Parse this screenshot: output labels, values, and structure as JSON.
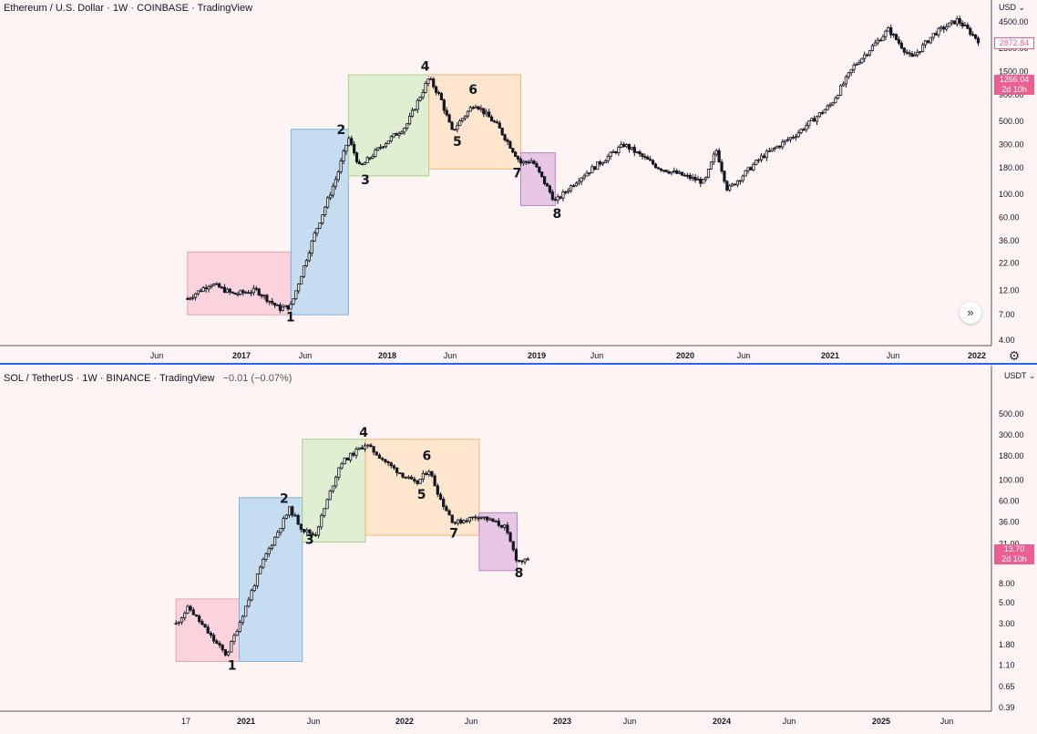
{
  "panes": [
    {
      "id": "eth",
      "header": "Ethereum / U.S. Dollar · 1W · COINBASE · TradingView",
      "change": "",
      "currency": "USD",
      "last_price": "2872.84",
      "marker_price": "1266.04",
      "marker_countdown": "2d 10h"
    },
    {
      "id": "sol",
      "header": "SOL / TetherUS · 1W · BINANCE · TradingView",
      "change": "−0.01 (−0.07%)",
      "currency": "USDT",
      "last_price": "13.70",
      "last_countdown": "2d 10h"
    }
  ],
  "icons": {
    "nav": "double-chevron-right-icon",
    "settings": "gear-icon"
  },
  "colors": {
    "background": "#fff4f4",
    "pink_box": "#f8c8d4",
    "blue_box": "#b3d4ef",
    "green_box": "#d6ecc6",
    "orange_box": "#fde0c0",
    "purple_box": "#e0b8e0",
    "candle": "#131722",
    "separator": "#2962ff",
    "price_tag": "#ec5f91"
  },
  "chart_data": [
    {
      "type": "candlestick",
      "title": "Ethereum / U.S. Dollar · 1W · COINBASE · TradingView",
      "y_scale": "log",
      "y_ticks": [
        "4500.00",
        "2500.00",
        "1500.00",
        "900.00",
        "500.00",
        "300.00",
        "180.00",
        "100.00",
        "60.00",
        "36.00",
        "22.00",
        "12.00",
        "7.00",
        "4.00"
      ],
      "x_ticks": [
        "Jun",
        "2017",
        "Jun",
        "2018",
        "Jun",
        "2019",
        "Jun",
        "2020",
        "Jun",
        "2021",
        "Jun",
        "2022"
      ],
      "wave_labels": [
        "1",
        "2",
        "3",
        "4",
        "5",
        "6",
        "7",
        "8"
      ],
      "price_path": [
        {
          "date": "2016-04",
          "close": 10
        },
        {
          "date": "2016-06",
          "close": 14
        },
        {
          "date": "2016-08",
          "close": 11
        },
        {
          "date": "2016-10",
          "close": 12
        },
        {
          "date": "2016-12",
          "close": 8
        },
        {
          "date": "2017-01",
          "close": 8.5
        },
        {
          "date": "2017-03",
          "close": 40
        },
        {
          "date": "2017-05",
          "close": 150
        },
        {
          "date": "2017-06",
          "close": 350
        },
        {
          "date": "2017-07",
          "close": 180
        },
        {
          "date": "2017-09",
          "close": 300
        },
        {
          "date": "2017-11",
          "close": 450
        },
        {
          "date": "2018-01",
          "close": 1300
        },
        {
          "date": "2018-02",
          "close": 850
        },
        {
          "date": "2018-03",
          "close": 400
        },
        {
          "date": "2018-05",
          "close": 750
        },
        {
          "date": "2018-07",
          "close": 450
        },
        {
          "date": "2018-09",
          "close": 200
        },
        {
          "date": "2018-10",
          "close": 210
        },
        {
          "date": "2018-12",
          "close": 85
        },
        {
          "date": "2019-02",
          "close": 140
        },
        {
          "date": "2019-06",
          "close": 300
        },
        {
          "date": "2019-09",
          "close": 180
        },
        {
          "date": "2020-01",
          "close": 130
        },
        {
          "date": "2020-02",
          "close": 270
        },
        {
          "date": "2020-03",
          "close": 110
        },
        {
          "date": "2020-06",
          "close": 230
        },
        {
          "date": "2020-09",
          "close": 380
        },
        {
          "date": "2020-12",
          "close": 730
        },
        {
          "date": "2021-02",
          "close": 1700
        },
        {
          "date": "2021-05",
          "close": 3800
        },
        {
          "date": "2021-07",
          "close": 2000
        },
        {
          "date": "2021-09",
          "close": 3500
        },
        {
          "date": "2021-11",
          "close": 4700
        },
        {
          "date": "2022-01",
          "close": 2872.84
        }
      ],
      "highlight_boxes": [
        {
          "color": "pink",
          "from": "2016-04",
          "to": "2017-01",
          "low": 7,
          "high": 28
        },
        {
          "color": "blue",
          "from": "2017-01",
          "to": "2017-06",
          "low": 7,
          "high": 420
        },
        {
          "color": "green",
          "from": "2017-06",
          "to": "2018-01",
          "low": 150,
          "high": 1400
        },
        {
          "color": "orange",
          "from": "2018-01",
          "to": "2018-09",
          "low": 175,
          "high": 1400
        },
        {
          "color": "purple",
          "from": "2018-09",
          "to": "2018-12",
          "low": 78,
          "high": 250
        }
      ]
    },
    {
      "type": "candlestick",
      "title": "SOL / TetherUS · 1W · BINANCE · TradingView",
      "y_scale": "log",
      "y_ticks": [
        "500.00",
        "300.00",
        "180.00",
        "100.00",
        "60.00",
        "36.00",
        "21.00",
        "13.70",
        "8.00",
        "5.00",
        "3.00",
        "1.80",
        "1.10",
        "0.65",
        "0.39"
      ],
      "x_ticks": [
        "17",
        "2021",
        "Jun",
        "2022",
        "Jun",
        "2023",
        "Jun",
        "2024",
        "Jun",
        "2025",
        "Jun"
      ],
      "wave_labels": [
        "1",
        "2",
        "3",
        "4",
        "5",
        "6",
        "7",
        "8"
      ],
      "price_path": [
        {
          "date": "2020-08",
          "close": 3
        },
        {
          "date": "2020-09",
          "close": 4.5
        },
        {
          "date": "2020-11",
          "close": 2
        },
        {
          "date": "2020-12",
          "close": 1.4
        },
        {
          "date": "2021-01",
          "close": 3
        },
        {
          "date": "2021-03",
          "close": 15
        },
        {
          "date": "2021-05",
          "close": 50
        },
        {
          "date": "2021-06",
          "close": 30
        },
        {
          "date": "2021-07",
          "close": 26
        },
        {
          "date": "2021-09",
          "close": 150
        },
        {
          "date": "2021-11",
          "close": 240
        },
        {
          "date": "2022-01",
          "close": 140
        },
        {
          "date": "2022-03",
          "close": 90
        },
        {
          "date": "2022-04",
          "close": 130
        },
        {
          "date": "2022-05",
          "close": 60
        },
        {
          "date": "2022-06",
          "close": 35
        },
        {
          "date": "2022-08",
          "close": 42
        },
        {
          "date": "2022-10",
          "close": 32
        },
        {
          "date": "2022-11",
          "close": 14
        },
        {
          "date": "2022-12",
          "close": 13.7
        }
      ],
      "highlight_boxes": [
        {
          "color": "pink",
          "from": "2020-08",
          "to": "2021-01",
          "low": 1.2,
          "high": 5.5
        },
        {
          "color": "blue",
          "from": "2021-01",
          "to": "2021-06",
          "low": 1.2,
          "high": 65
        },
        {
          "color": "green",
          "from": "2021-06",
          "to": "2021-11",
          "low": 22,
          "high": 270
        },
        {
          "color": "orange",
          "from": "2021-11",
          "to": "2022-08",
          "low": 26,
          "high": 270
        },
        {
          "color": "purple",
          "from": "2022-08",
          "to": "2022-11",
          "low": 11,
          "high": 45
        }
      ]
    }
  ]
}
